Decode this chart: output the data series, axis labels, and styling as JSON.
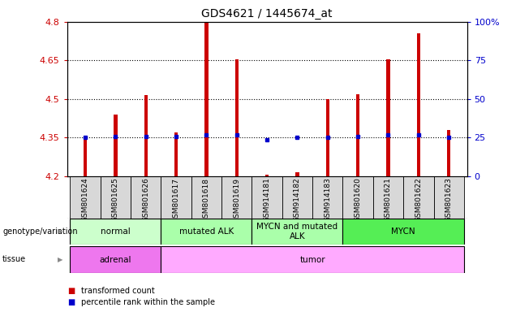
{
  "title": "GDS4621 / 1445674_at",
  "samples": [
    "GSM801624",
    "GSM801625",
    "GSM801626",
    "GSM801617",
    "GSM801618",
    "GSM801619",
    "GSM914181",
    "GSM914182",
    "GSM914183",
    "GSM801620",
    "GSM801621",
    "GSM801622",
    "GSM801623"
  ],
  "bar_values": [
    4.355,
    4.44,
    4.515,
    4.37,
    4.795,
    4.655,
    4.205,
    4.215,
    4.5,
    4.52,
    4.655,
    4.755,
    4.38
  ],
  "percentile_values": [
    4.352,
    4.356,
    4.356,
    4.354,
    4.362,
    4.362,
    4.342,
    4.35,
    4.35,
    4.356,
    4.362,
    4.362,
    4.35
  ],
  "y_min": 4.2,
  "y_max": 4.8,
  "y_ticks": [
    4.2,
    4.35,
    4.5,
    4.65,
    4.8
  ],
  "y_ticks_labels": [
    "4.2",
    "4.35",
    "4.5",
    "4.65",
    "4.8"
  ],
  "right_y_ticks": [
    0,
    25,
    50,
    75,
    100
  ],
  "right_y_labels": [
    "0",
    "25",
    "50",
    "75",
    "100%"
  ],
  "bar_color": "#cc0000",
  "percentile_color": "#0000cc",
  "bar_bottom": 4.2,
  "dotted_line_y": [
    4.35,
    4.5,
    4.65
  ],
  "genotype_groups": [
    {
      "label": "normal",
      "start": 0,
      "end": 3,
      "color": "#ccffcc"
    },
    {
      "label": "mutated ALK",
      "start": 3,
      "end": 6,
      "color": "#aaffaa"
    },
    {
      "label": "MYCN and mutated\nALK",
      "start": 6,
      "end": 9,
      "color": "#aaffaa"
    },
    {
      "label": "MYCN",
      "start": 9,
      "end": 13,
      "color": "#55ee55"
    }
  ],
  "tissue_groups": [
    {
      "label": "adrenal",
      "start": 0,
      "end": 3,
      "color": "#ee77ee"
    },
    {
      "label": "tumor",
      "start": 3,
      "end": 13,
      "color": "#ffaaff"
    }
  ],
  "legend_items": [
    {
      "label": "transformed count",
      "color": "#cc0000"
    },
    {
      "label": "percentile rank within the sample",
      "color": "#0000cc"
    }
  ],
  "xlabel_color": "#cc0000",
  "right_axis_color": "#0000cc",
  "bg_color": "#ffffff",
  "plot_bg": "#ffffff",
  "bar_width": 0.12
}
